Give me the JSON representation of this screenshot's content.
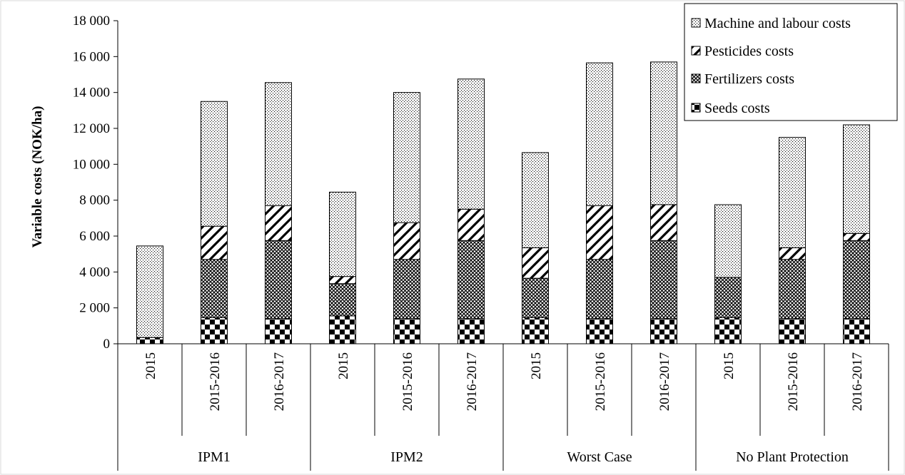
{
  "chart_data": {
    "type": "bar",
    "stacked": true,
    "title": "",
    "xlabel": "",
    "ylabel": "Variable  costs (NOK/ha)",
    "ylim": [
      0,
      18000
    ],
    "yticks": [
      0,
      2000,
      4000,
      6000,
      8000,
      10000,
      12000,
      14000,
      16000,
      18000
    ],
    "ytick_labels": [
      "0",
      "2 000",
      "4 000",
      "6 000",
      "8 000",
      "10 000",
      "12 000",
      "14 000",
      "16 000",
      "18 000"
    ],
    "grid": false,
    "legend_position": "top-right",
    "groups": [
      {
        "label": "IPM1",
        "categories": [
          "2015",
          "2015-2016",
          "2016-2017"
        ]
      },
      {
        "label": "IPM2",
        "categories": [
          "2015",
          "2015-2016",
          "2016-2017"
        ]
      },
      {
        "label": "Worst Case",
        "categories": [
          "2015",
          "2015-2016",
          "2016-2017"
        ]
      },
      {
        "label": "No Plant Protection",
        "categories": [
          "2015",
          "2015-2016",
          "2016-2017"
        ]
      }
    ],
    "categories": [
      "2015",
      "2015-2016",
      "2016-2017",
      "2015",
      "2015-2016",
      "2016-2017",
      "2015",
      "2015-2016",
      "2016-2017",
      "2015",
      "2015-2016",
      "2016-2017"
    ],
    "series": [
      {
        "name": "Seeds costs",
        "pattern": "checker",
        "values": [
          350,
          1450,
          1400,
          1550,
          1400,
          1400,
          1450,
          1400,
          1400,
          1450,
          1400,
          1400
        ]
      },
      {
        "name": "Fertilizers costs",
        "pattern": "crosshatch",
        "values": [
          0,
          3250,
          4350,
          1800,
          3300,
          4350,
          2200,
          3300,
          4350,
          2250,
          3300,
          4350
        ]
      },
      {
        "name": "Pesticides costs",
        "pattern": "diagonal",
        "values": [
          0,
          1850,
          1950,
          400,
          2050,
          1750,
          1700,
          3000,
          2000,
          0,
          650,
          400
        ]
      },
      {
        "name": "Machine and labour costs",
        "pattern": "dots",
        "values": [
          5100,
          6950,
          6850,
          4700,
          7250,
          7250,
          5300,
          7950,
          7950,
          4050,
          6150,
          6050
        ]
      }
    ],
    "legend_order": [
      "Machine and labour costs",
      "Pesticides costs",
      "Fertilizers costs",
      "Seeds costs"
    ]
  }
}
